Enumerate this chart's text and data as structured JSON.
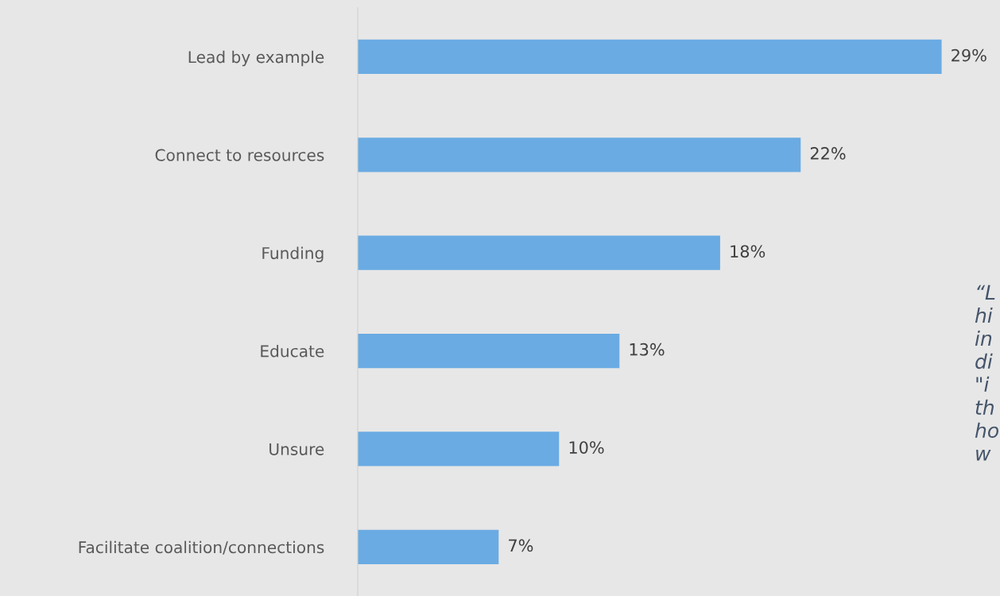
{
  "chart_data": {
    "type": "bar",
    "orientation": "horizontal",
    "categories": [
      "Lead by example",
      "Connect to resources",
      "Funding",
      "Educate",
      "Unsure",
      "Facilitate coalition/connections"
    ],
    "values": [
      29,
      22,
      18,
      13,
      10,
      7
    ],
    "value_labels": [
      "29%",
      "22%",
      "18%",
      "13%",
      "10%",
      "7%"
    ],
    "color": "#6aabe3",
    "grid": false,
    "annotations": [
      "“L\nhi\nin\ndi\n\"i\nth\nho\nw"
    ]
  }
}
